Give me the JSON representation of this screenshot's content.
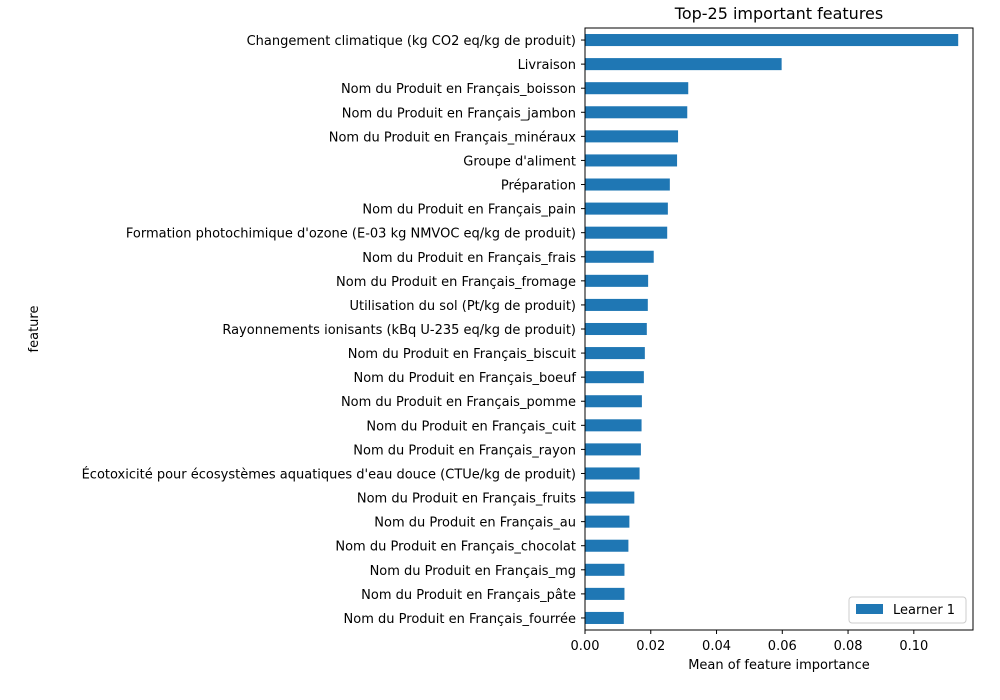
{
  "chart_data": {
    "type": "bar",
    "orientation": "horizontal",
    "title": "Top-25 important features",
    "xlabel": "Mean of feature importance",
    "ylabel": "feature",
    "xlim": [
      0.0,
      0.118
    ],
    "xticks": [
      0.0,
      0.02,
      0.04,
      0.06,
      0.08,
      0.1
    ],
    "xtick_labels": [
      "0.00",
      "0.02",
      "0.04",
      "0.06",
      "0.08",
      "0.10"
    ],
    "grid": false,
    "legend_position": "bottom-right",
    "bar_color": "#1f77b4",
    "categories": [
      "Changement climatique (kg CO2 eq/kg de produit)",
      "Livraison",
      "Nom du Produit en Français_boisson",
      "Nom du Produit en Français_jambon",
      "Nom du Produit en Français_minéraux",
      "Groupe d'aliment",
      "Préparation",
      "Nom du Produit en Français_pain",
      "Formation photochimique d'ozone (E-03 kg NMVOC eq/kg de produit)",
      "Nom du Produit en Français_frais",
      "Nom du Produit en Français_fromage",
      "Utilisation du sol (Pt/kg de produit)",
      "Rayonnements ionisants (kBq U-235 eq/kg de produit)",
      "Nom du Produit en Français_biscuit",
      "Nom du Produit en Français_boeuf",
      "Nom du Produit en Français_pomme",
      "Nom du Produit en Français_cuit",
      "Nom du Produit en Français_rayon",
      "Écotoxicité pour écosystèmes aquatiques d'eau douce (CTUe/kg de produit)",
      "Nom du Produit en Français_fruits",
      "Nom du Produit en Français_au",
      "Nom du Produit en Français_chocolat",
      "Nom du Produit en Français_mg",
      "Nom du Produit en Français_pâte",
      "Nom du Produit en Français_fourrée"
    ],
    "series": [
      {
        "name": "Learner 1",
        "values": [
          0.1135,
          0.0598,
          0.0314,
          0.0311,
          0.0283,
          0.028,
          0.0258,
          0.0252,
          0.025,
          0.0209,
          0.0192,
          0.0191,
          0.0188,
          0.0182,
          0.0179,
          0.0173,
          0.0172,
          0.017,
          0.0166,
          0.015,
          0.0135,
          0.0132,
          0.012,
          0.012,
          0.0118
        ]
      }
    ]
  }
}
